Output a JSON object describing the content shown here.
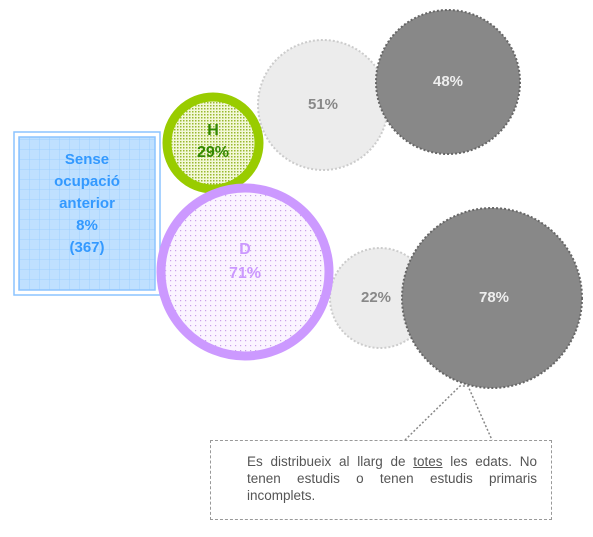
{
  "box": {
    "lines": [
      "Sense",
      "ocupació",
      "anterior",
      "8%",
      "(367)"
    ]
  },
  "circles": {
    "h": {
      "letter": "H",
      "label": "29%"
    },
    "h_small": {
      "label": "51%"
    },
    "h_large": {
      "label": "48%"
    },
    "d": {
      "letter": "D",
      "label": "71%"
    },
    "d_small": {
      "label": "22%"
    },
    "d_large": {
      "label": "78%"
    }
  },
  "note": {
    "before": "Es distribueix al llarg de",
    "underlined": "totes",
    "after": "les edats. No tenen estudis o tenen estudis primaris incomplets."
  }
}
